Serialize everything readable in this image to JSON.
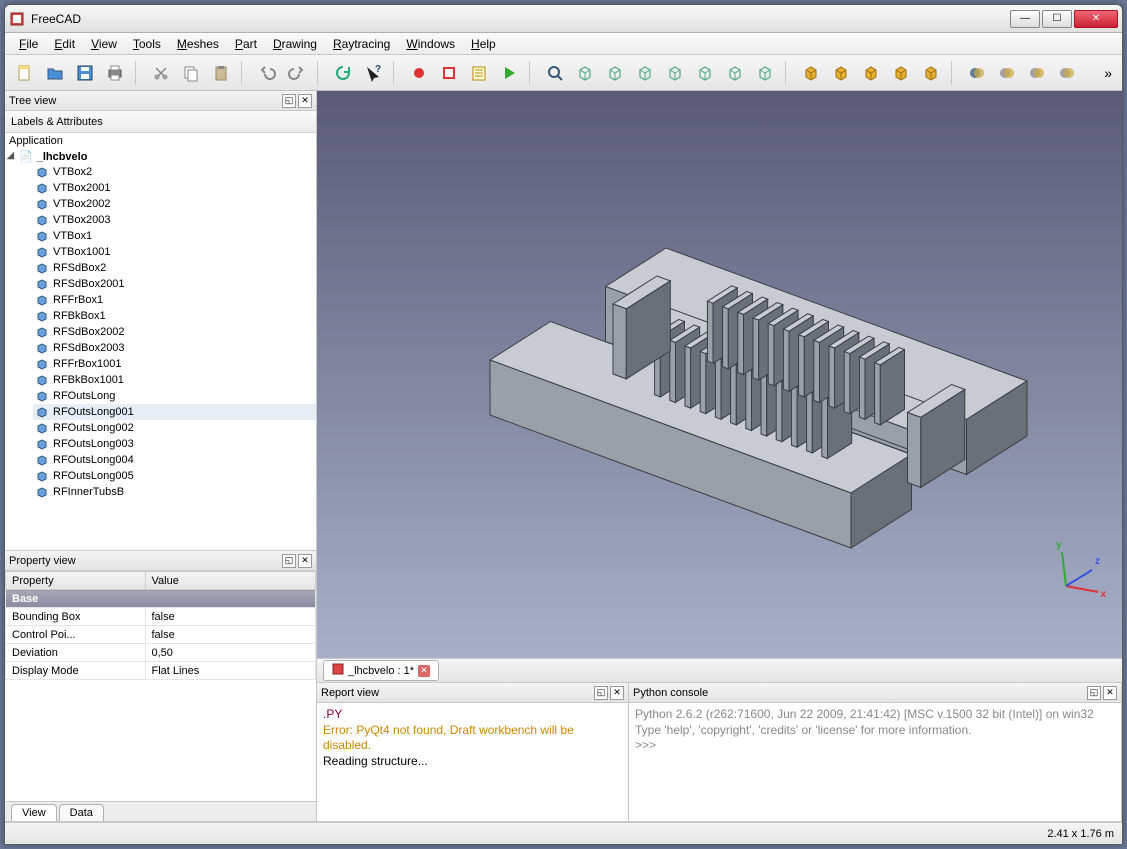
{
  "window": {
    "title": "FreeCAD"
  },
  "menus": [
    "File",
    "Edit",
    "View",
    "Tools",
    "Meshes",
    "Part",
    "Drawing",
    "Raytracing",
    "Windows",
    "Help"
  ],
  "toolbar_icons": [
    {
      "name": "new-icon",
      "color": "#f5d76e",
      "shape": "doc"
    },
    {
      "name": "open-icon",
      "color": "#4a90d9",
      "shape": "folder"
    },
    {
      "name": "save-icon",
      "color": "#4a90d9",
      "shape": "floppy"
    },
    {
      "name": "print-icon",
      "color": "#888",
      "shape": "printer"
    },
    {
      "sep": true
    },
    {
      "name": "cut-icon",
      "color": "#888",
      "shape": "scissors"
    },
    {
      "name": "copy-icon",
      "color": "#888",
      "shape": "copy"
    },
    {
      "name": "paste-icon",
      "color": "#888",
      "shape": "paste"
    },
    {
      "sep": true
    },
    {
      "name": "undo-icon",
      "color": "#888",
      "shape": "undo"
    },
    {
      "name": "redo-icon",
      "color": "#888",
      "shape": "redo"
    },
    {
      "sep": true
    },
    {
      "name": "refresh-icon",
      "color": "#2a7",
      "shape": "refresh"
    },
    {
      "name": "whatsthis-icon",
      "color": "#246",
      "shape": "whats"
    },
    {
      "sep": true
    },
    {
      "name": "record-icon",
      "color": "#d33",
      "shape": "record"
    },
    {
      "name": "stop-icon",
      "color": "#d33",
      "shape": "stop"
    },
    {
      "name": "macro-icon",
      "color": "#b80",
      "shape": "notepad"
    },
    {
      "name": "play-icon",
      "color": "#3a3",
      "shape": "play"
    },
    {
      "sep": true
    },
    {
      "name": "zoom-icon",
      "color": "#357",
      "shape": "zoom"
    },
    {
      "name": "iso-icon",
      "color": "#5a8",
      "shape": "cube"
    },
    {
      "name": "front-icon",
      "color": "#5a8",
      "shape": "cube"
    },
    {
      "name": "top-icon",
      "color": "#5a8",
      "shape": "cube"
    },
    {
      "name": "right-icon",
      "color": "#5a8",
      "shape": "cube"
    },
    {
      "name": "rear-icon",
      "color": "#5a8",
      "shape": "cube"
    },
    {
      "name": "bottom-icon",
      "color": "#5a8",
      "shape": "cube"
    },
    {
      "name": "left-icon",
      "color": "#5a8",
      "shape": "cube"
    },
    {
      "sep": true
    },
    {
      "name": "box-icon",
      "color": "#e8b030",
      "shape": "solid"
    },
    {
      "name": "cyl-icon",
      "color": "#e8b030",
      "shape": "solid"
    },
    {
      "name": "sph-icon",
      "color": "#e8b030",
      "shape": "solid"
    },
    {
      "name": "cone-icon",
      "color": "#e8b030",
      "shape": "solid"
    },
    {
      "name": "torus-icon",
      "color": "#e8b030",
      "shape": "solid"
    },
    {
      "sep": true
    },
    {
      "name": "bool1-icon",
      "color": "#357",
      "shape": "bool"
    },
    {
      "name": "bool2-icon",
      "color": "#888",
      "shape": "bool"
    },
    {
      "name": "bool3-icon",
      "color": "#888",
      "shape": "bool"
    },
    {
      "name": "bool4-icon",
      "color": "#888",
      "shape": "bool"
    }
  ],
  "tree": {
    "panel_title": "Tree view",
    "subheader": "Labels & Attributes",
    "root_label": "Application",
    "doc_label": "_lhcbvelo",
    "selected_index": 15,
    "items": [
      "VTBox2",
      "VTBox2001",
      "VTBox2002",
      "VTBox2003",
      "VTBox1",
      "VTBox1001",
      "RFSdBox2",
      "RFSdBox2001",
      "RFFrBox1",
      "RFBkBox1",
      "RFSdBox2002",
      "RFSdBox2003",
      "RFFrBox1001",
      "RFBkBox1001",
      "RFOutsLong",
      "RFOutsLong001",
      "RFOutsLong002",
      "RFOutsLong003",
      "RFOutsLong004",
      "RFOutsLong005",
      "RFInnerTubsB"
    ]
  },
  "properties": {
    "panel_title": "Property view",
    "columns": [
      "Property",
      "Value"
    ],
    "group_label": "Base",
    "rows": [
      {
        "k": "Bounding Box",
        "v": "false"
      },
      {
        "k": "Control Poi...",
        "v": "false"
      },
      {
        "k": "Deviation",
        "v": "0,50"
      },
      {
        "k": "Display Mode",
        "v": "Flat Lines"
      }
    ],
    "tabs": [
      "View",
      "Data"
    ],
    "active_tab": 0
  },
  "report": {
    "panel_title": "Report view",
    "lines": [
      {
        "cls": "py",
        "text": ".PY"
      },
      {
        "cls": "err",
        "text": "Error: PyQt4 not found, Draft workbench will be disabled."
      },
      {
        "cls": "",
        "text": "Reading structure..."
      }
    ]
  },
  "python": {
    "panel_title": "Python console",
    "lines": [
      "Python 2.6.2 (r262:71600, Jun 22 2009, 21:41:42) [MSC v.1500 32 bit (Intel)] on win32",
      "Type 'help', 'copyright', 'credits' or 'license' for more information.",
      ">>> "
    ]
  },
  "doc_tab": {
    "label": "_lhcbvelo : 1*"
  },
  "status": {
    "dimensions": "2.41 x 1.76 m"
  },
  "axis_labels": {
    "x": "x",
    "y": "y",
    "z": "z"
  },
  "model_style": {
    "fill": "#9aa0a8",
    "fill_light": "#c8ccd2",
    "fill_dark": "#6a7078",
    "stroke": "#3a3e44",
    "stroke_width": 1
  }
}
